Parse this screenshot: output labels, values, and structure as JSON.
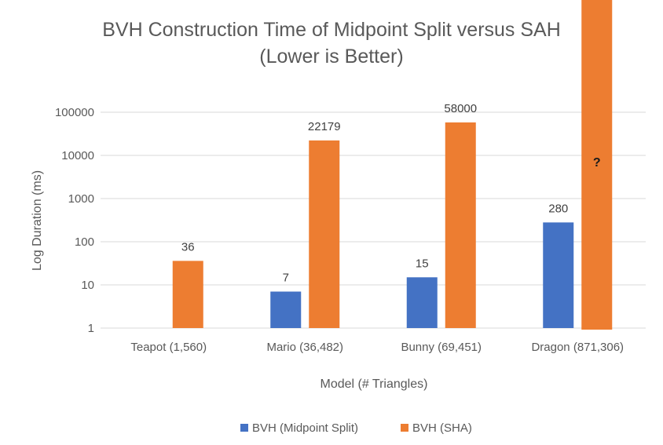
{
  "chart_data": {
    "type": "bar",
    "title_lines": [
      "BVH Construction Time of Midpoint Split versus SAH",
      "(Lower is Better)"
    ],
    "xlabel": "Model (# Triangles)",
    "ylabel": "Log Duration (ms)",
    "y_scale": "log",
    "ylim": [
      1,
      100000
    ],
    "y_ticks": [
      "1",
      "10",
      "100",
      "1000",
      "10000",
      "100000"
    ],
    "grid": true,
    "legend_position": "bottom",
    "categories": [
      "Teapot (1,560)",
      "Mario (36,482)",
      "Bunny (69,451)",
      "Dragon (871,306)"
    ],
    "series": [
      {
        "name": "BVH (Midpoint Split)",
        "color": "#4472C4",
        "values": [
          null,
          7,
          15,
          280
        ],
        "labels": [
          "",
          "7",
          "15",
          "280"
        ]
      },
      {
        "name": "BVH (SHA)",
        "color": "#ED7D31",
        "values": [
          36,
          22179,
          58000,
          null
        ],
        "labels": [
          "36",
          "22179",
          "58000",
          "?"
        ],
        "note": "Dragon value unknown; bar extends past top of plot"
      }
    ]
  }
}
